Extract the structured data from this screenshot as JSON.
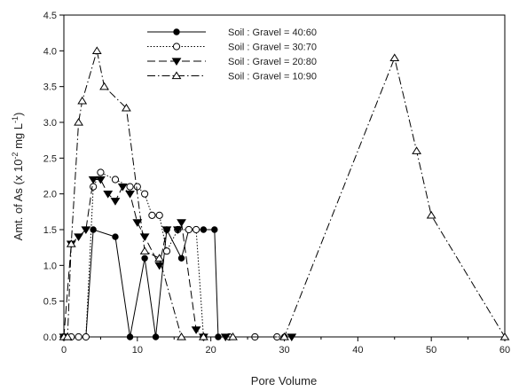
{
  "chart_data": {
    "type": "line",
    "xlabel": "Pore Volume",
    "ylabel_main": "Amt. of As (x 10",
    "ylabel_sup1": "-2",
    "ylabel_mid": " mg L",
    "ylabel_sup2": "-1",
    "ylabel_end": ")",
    "xlim": [
      0,
      60
    ],
    "ylim": [
      0,
      4.5
    ],
    "x_ticks": [
      "0",
      "10",
      "20",
      "30",
      "40",
      "50",
      "60"
    ],
    "y_ticks": [
      "0.0",
      "0.5",
      "1.0",
      "1.5",
      "2.0",
      "2.5",
      "3.0",
      "3.5",
      "4.0",
      "4.5"
    ],
    "legend_position": "top-center",
    "grid": false,
    "series": [
      {
        "name": "Soil : Gravel = 40:60",
        "marker": "filled-circle",
        "dash": "solid",
        "points": [
          [
            0,
            0
          ],
          [
            1,
            0
          ],
          [
            2,
            0
          ],
          [
            3,
            0
          ],
          [
            4,
            1.5
          ],
          [
            7,
            1.4
          ],
          [
            9,
            0
          ],
          [
            11,
            1.1
          ],
          [
            12.5,
            0
          ],
          [
            14,
            1.5
          ],
          [
            16,
            1.1
          ],
          [
            17,
            1.5
          ],
          [
            19,
            1.5
          ],
          [
            20.5,
            1.5
          ],
          [
            21,
            0
          ],
          [
            30,
            0
          ]
        ]
      },
      {
        "name": "Soil : Gravel = 30:70",
        "marker": "open-circle",
        "dash": "dotted",
        "points": [
          [
            0,
            0
          ],
          [
            1,
            0
          ],
          [
            2,
            0
          ],
          [
            3,
            0
          ],
          [
            4,
            2.1
          ],
          [
            5,
            2.3
          ],
          [
            7,
            2.2
          ],
          [
            9,
            2.1
          ],
          [
            10,
            2.1
          ],
          [
            11,
            2.0
          ],
          [
            12,
            1.7
          ],
          [
            13,
            1.7
          ],
          [
            14,
            1.2
          ],
          [
            15.5,
            1.5
          ],
          [
            17,
            1.5
          ],
          [
            18,
            1.5
          ],
          [
            19,
            0
          ],
          [
            22.5,
            0
          ],
          [
            26,
            0
          ],
          [
            29,
            0
          ]
        ]
      },
      {
        "name": "Soil : Gravel = 20:80",
        "marker": "filled-triangle-down",
        "dash": "dashed",
        "points": [
          [
            0,
            0
          ],
          [
            1,
            1.3
          ],
          [
            2,
            1.4
          ],
          [
            3,
            1.5
          ],
          [
            4,
            2.2
          ],
          [
            5,
            2.2
          ],
          [
            6,
            2.0
          ],
          [
            7,
            1.9
          ],
          [
            8,
            2.1
          ],
          [
            9,
            2.0
          ],
          [
            10,
            1.6
          ],
          [
            11,
            1.4
          ],
          [
            13,
            1.0
          ],
          [
            14,
            1.5
          ],
          [
            15.5,
            1.5
          ],
          [
            16,
            1.6
          ],
          [
            18,
            0.1
          ],
          [
            19,
            0
          ],
          [
            22,
            0
          ],
          [
            31,
            0
          ]
        ]
      },
      {
        "name": "Soil : Gravel = 10:90",
        "marker": "open-triangle-up",
        "dash": "dash-dot",
        "points": [
          [
            0,
            0
          ],
          [
            0.5,
            0
          ],
          [
            1,
            1.3
          ],
          [
            2,
            3.0
          ],
          [
            2.5,
            3.3
          ],
          [
            4.5,
            4.0
          ],
          [
            5.5,
            3.5
          ],
          [
            8.5,
            3.2
          ],
          [
            11,
            1.2
          ],
          [
            13,
            1.1
          ],
          [
            16,
            0
          ],
          [
            19,
            0
          ],
          [
            23,
            0
          ],
          [
            30,
            0
          ],
          [
            45,
            3.9
          ],
          [
            48,
            2.6
          ],
          [
            50,
            1.7
          ],
          [
            60,
            0
          ]
        ]
      }
    ]
  }
}
